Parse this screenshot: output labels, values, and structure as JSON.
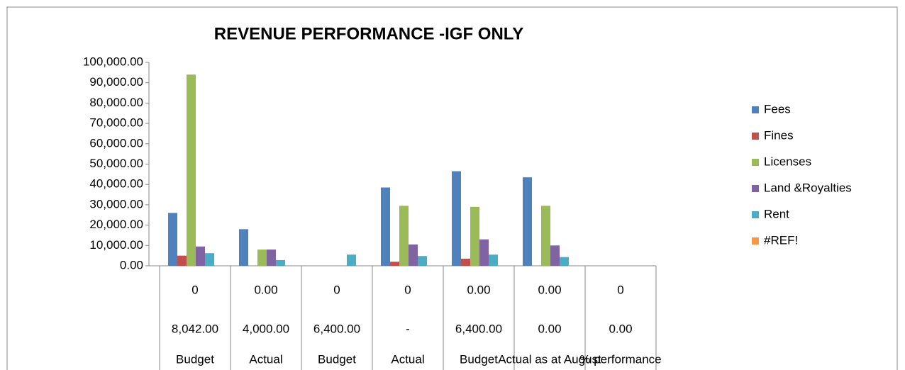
{
  "chart_data": {
    "type": "bar",
    "title": "REVENUE PERFORMANCE -IGF ONLY",
    "category_levels": [
      [
        "0",
        "0.00",
        "0",
        "0",
        "0.00",
        "0.00",
        "0"
      ],
      [
        "8,042.00",
        "4,000.00",
        "6,400.00",
        "-",
        "6,400.00",
        "0.00",
        "0.00"
      ],
      [
        "Budget",
        "Actual",
        "Budget",
        "Actual",
        "Budget",
        "Actual as at August",
        "% performance"
      ]
    ],
    "series": [
      {
        "name": "Fees",
        "color": "#4f81bd",
        "values": [
          26000,
          18000,
          0,
          38500,
          46500,
          43500,
          0
        ]
      },
      {
        "name": "Fines",
        "color": "#c0504d",
        "values": [
          5000,
          0,
          0,
          2000,
          3500,
          0,
          0
        ]
      },
      {
        "name": "Licenses",
        "color": "#9bbb59",
        "values": [
          94000,
          8000,
          0,
          29500,
          29000,
          29500,
          0
        ]
      },
      {
        "name": "Land &Royalties",
        "color": "#8064a2",
        "values": [
          9500,
          8000,
          0,
          10500,
          13000,
          10000,
          0
        ]
      },
      {
        "name": "Rent",
        "color": "#4bacc6",
        "values": [
          6200,
          2800,
          5500,
          4800,
          5500,
          4300,
          0
        ]
      },
      {
        "name": "#REF!",
        "color": "#f79646",
        "values": [
          0,
          0,
          0,
          0,
          0,
          0,
          0
        ]
      }
    ],
    "ylim": [
      0,
      100000
    ],
    "yticks": [
      {
        "value": 0,
        "label": "0.00"
      },
      {
        "value": 10000,
        "label": "10,000.00"
      },
      {
        "value": 20000,
        "label": "20,000.00"
      },
      {
        "value": 30000,
        "label": "30,000.00"
      },
      {
        "value": 40000,
        "label": "40,000.00"
      },
      {
        "value": 50000,
        "label": "50,000.00"
      },
      {
        "value": 60000,
        "label": "60,000.00"
      },
      {
        "value": 70000,
        "label": "70,000.00"
      },
      {
        "value": 80000,
        "label": "80,000.00"
      },
      {
        "value": 90000,
        "label": "90,000.00"
      },
      {
        "value": 100000,
        "label": "100,000.00"
      }
    ],
    "legend": "right"
  }
}
